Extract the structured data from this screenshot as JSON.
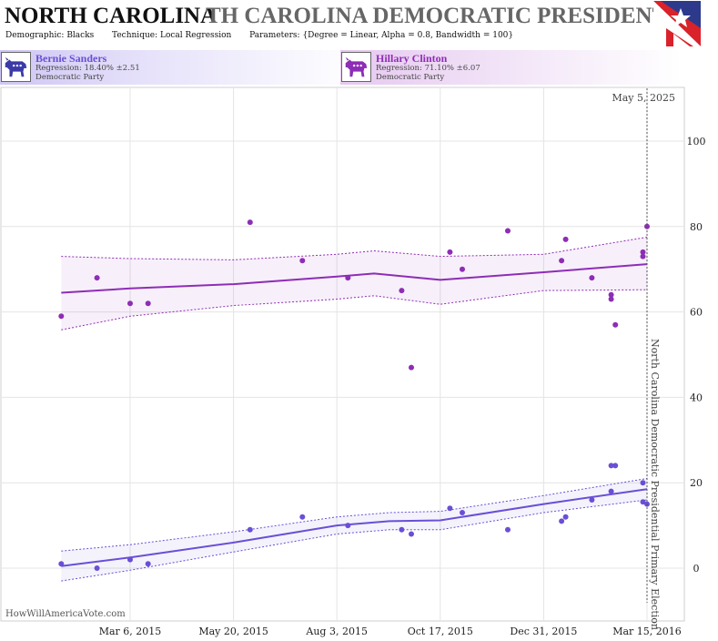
{
  "header": {
    "state": "NORTH CAROLINA",
    "election_title": "TH CAROLINA DEMOCRATIC PRESIDENTIAL I",
    "demographic_label": "Demographic:",
    "demographic_value": "Blacks",
    "technique_label": "Technique:",
    "technique_value": "Local Regression",
    "parameters_label": "Parameters:",
    "parameters_value": "{Degree = Linear, Alpha = 0.8, Bandwidth = 100}"
  },
  "candidates": [
    {
      "name": "Bernie Sanders",
      "regression": "Regression: 18.40% ±2.51",
      "party": "Democratic Party",
      "color": "#6a4fd6"
    },
    {
      "name": "Hillary Clinton",
      "regression": "Regression: 71.10% ±6.07",
      "party": "Democratic Party",
      "color": "#8e2db5"
    }
  ],
  "watermark": "HowWillAmericaVote.com",
  "chart_data": {
    "type": "scatter",
    "x_axis": {
      "type": "date",
      "ticks": [
        "Mar 6, 2015",
        "May 20, 2015",
        "Aug 3, 2015",
        "Oct 17, 2015",
        "Dec 31, 2015",
        "Mar 15, 2016"
      ],
      "tick_dates": [
        "2015-03-06",
        "2015-05-20",
        "2015-08-03",
        "2015-10-17",
        "2015-12-31",
        "2016-03-15"
      ]
    },
    "y_axis": {
      "ticks": [
        0,
        20,
        40,
        60,
        80,
        100
      ],
      "side": "right",
      "ylim": [
        -6,
        112
      ]
    },
    "grid": true,
    "current_date_label": "May 5, 2025",
    "election_marker": {
      "date": "2016-03-15",
      "label": "North Carolina Democratic Presidential Primary Election"
    },
    "series": [
      {
        "name": "Hillary Clinton",
        "color": "#8e2db5",
        "points": [
          [
            "2015-01-15",
            59
          ],
          [
            "2015-02-10",
            68
          ],
          [
            "2015-03-06",
            62
          ],
          [
            "2015-03-19",
            62
          ],
          [
            "2015-06-01",
            81
          ],
          [
            "2015-07-09",
            72
          ],
          [
            "2015-08-11",
            68
          ],
          [
            "2015-09-19",
            65
          ],
          [
            "2015-09-26",
            47
          ],
          [
            "2015-10-24",
            74
          ],
          [
            "2015-11-02",
            70
          ],
          [
            "2015-12-05",
            79
          ],
          [
            "2016-01-13",
            72
          ],
          [
            "2016-01-16",
            77
          ],
          [
            "2016-02-04",
            68
          ],
          [
            "2016-02-18",
            64
          ],
          [
            "2016-02-18",
            63
          ],
          [
            "2016-02-21",
            57
          ],
          [
            "2016-03-12",
            74
          ],
          [
            "2016-03-12",
            73
          ],
          [
            "2016-03-15",
            80
          ]
        ],
        "regression": [
          [
            "2015-01-15",
            64.5
          ],
          [
            "2015-03-06",
            65.5
          ],
          [
            "2015-05-20",
            66.5
          ],
          [
            "2015-08-03",
            68.3
          ],
          [
            "2015-08-30",
            69.0
          ],
          [
            "2015-10-17",
            67.5
          ],
          [
            "2015-12-31",
            69.3
          ],
          [
            "2016-03-15",
            71.2
          ]
        ],
        "upper": [
          [
            "2015-01-15",
            73.0
          ],
          [
            "2015-03-06",
            72.5
          ],
          [
            "2015-05-20",
            72.2
          ],
          [
            "2015-08-03",
            73.5
          ],
          [
            "2015-08-30",
            74.3
          ],
          [
            "2015-10-17",
            73.0
          ],
          [
            "2015-12-31",
            73.5
          ],
          [
            "2016-03-15",
            77.5
          ]
        ],
        "lower": [
          [
            "2015-01-15",
            55.8
          ],
          [
            "2015-03-06",
            59.0
          ],
          [
            "2015-05-20",
            61.5
          ],
          [
            "2015-08-03",
            63.0
          ],
          [
            "2015-08-30",
            63.8
          ],
          [
            "2015-10-17",
            61.8
          ],
          [
            "2015-12-31",
            65.0
          ],
          [
            "2016-03-15",
            65.2
          ]
        ]
      },
      {
        "name": "Bernie Sanders",
        "color": "#6a4fd6",
        "points": [
          [
            "2015-01-15",
            1
          ],
          [
            "2015-02-10",
            0
          ],
          [
            "2015-03-06",
            2
          ],
          [
            "2015-03-19",
            1
          ],
          [
            "2015-06-01",
            9
          ],
          [
            "2015-07-09",
            12
          ],
          [
            "2015-08-11",
            10
          ],
          [
            "2015-09-19",
            9
          ],
          [
            "2015-09-26",
            8
          ],
          [
            "2015-10-24",
            14
          ],
          [
            "2015-11-02",
            13
          ],
          [
            "2015-12-05",
            9
          ],
          [
            "2016-01-13",
            11
          ],
          [
            "2016-01-16",
            12
          ],
          [
            "2016-02-04",
            16
          ],
          [
            "2016-02-18",
            24
          ],
          [
            "2016-02-21",
            24
          ],
          [
            "2016-02-18",
            18
          ],
          [
            "2016-03-12",
            20
          ],
          [
            "2016-03-12",
            15.5
          ],
          [
            "2016-03-15",
            15
          ]
        ],
        "regression": [
          [
            "2015-01-15",
            0.5
          ],
          [
            "2015-03-06",
            2.5
          ],
          [
            "2015-05-20",
            6.0
          ],
          [
            "2015-08-03",
            10.0
          ],
          [
            "2015-09-10",
            11.0
          ],
          [
            "2015-10-17",
            11.2
          ],
          [
            "2015-12-31",
            15.0
          ],
          [
            "2016-03-15",
            18.5
          ]
        ],
        "upper": [
          [
            "2015-01-15",
            4.0
          ],
          [
            "2015-03-06",
            5.5
          ],
          [
            "2015-05-20",
            8.5
          ],
          [
            "2015-08-03",
            12.0
          ],
          [
            "2015-09-10",
            13.0
          ],
          [
            "2015-10-17",
            13.3
          ],
          [
            "2015-12-31",
            17.0
          ],
          [
            "2016-03-15",
            21.0
          ]
        ],
        "lower": [
          [
            "2015-01-15",
            -3.0
          ],
          [
            "2015-03-06",
            -0.5
          ],
          [
            "2015-05-20",
            3.8
          ],
          [
            "2015-08-03",
            8.0
          ],
          [
            "2015-09-10",
            9.0
          ],
          [
            "2015-10-17",
            9.0
          ],
          [
            "2015-12-31",
            13.0
          ],
          [
            "2016-03-15",
            16.0
          ]
        ]
      }
    ]
  }
}
